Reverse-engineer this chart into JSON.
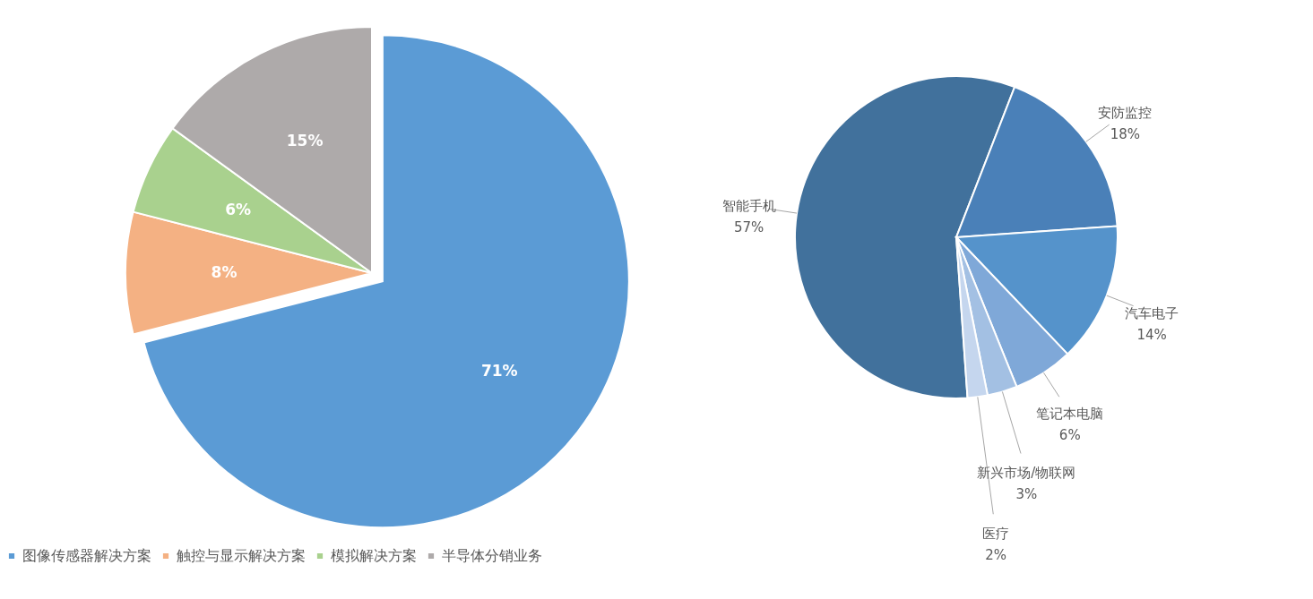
{
  "chart_data": [
    {
      "type": "pie",
      "categories": [
        "图像传感器解决方案",
        "触控与显示解决方案",
        "模拟解决方案",
        "半导体分销业务"
      ],
      "values": [
        71,
        8,
        6,
        15
      ],
      "colors": [
        "#5b9bd5",
        "#f4b183",
        "#a9d18e",
        "#aeaaaa"
      ],
      "value_labels": [
        "71%",
        "8%",
        "6%",
        "15%"
      ],
      "legend": "bottom"
    },
    {
      "type": "pie",
      "categories": [
        "智能手机",
        "安防监控",
        "汽车电子",
        "笔记本电脑",
        "新兴市场/物联网",
        "医疗"
      ],
      "values": [
        57,
        18,
        14,
        6,
        3,
        2
      ],
      "colors": [
        "#41719c",
        "#4a80b8",
        "#5593cb",
        "#7fa8d8",
        "#a3c0e3",
        "#c5d6ee"
      ],
      "value_labels": [
        "57%",
        "18%",
        "14%",
        "6%",
        "3%",
        "2%"
      ],
      "legend": false
    }
  ]
}
